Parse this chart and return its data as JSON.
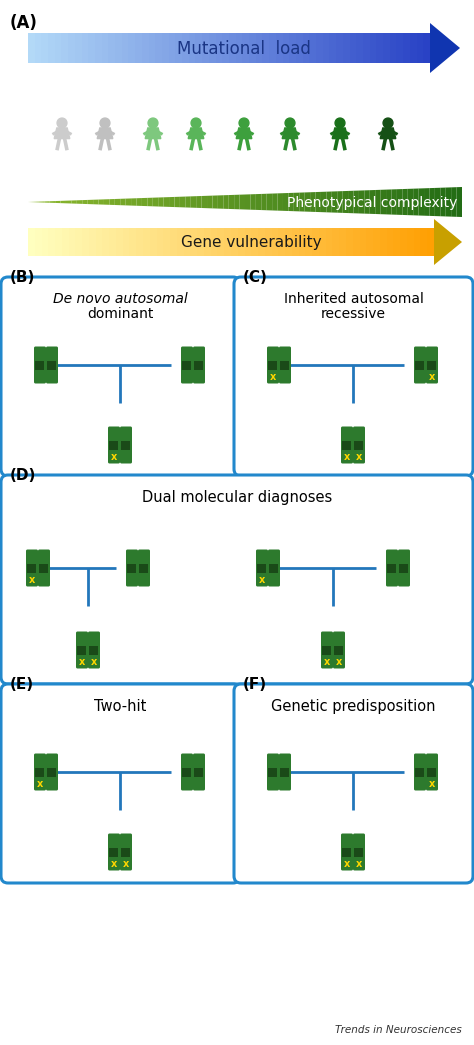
{
  "panel_A_label": "(A)",
  "mutational_load_text": "Mutational  load",
  "phenotypical_complexity_text": "Phenotypical complexity",
  "gene_vulnerability_text": "Gene vulnerability",
  "panel_B_label": "(B)",
  "panel_C_label": "(C)",
  "panel_D_label": "(D)",
  "panel_E_label": "(E)",
  "panel_F_label": "(F)",
  "panel_B_title_line1": "De novo autosomal",
  "panel_B_title_line2": "dominant",
  "panel_C_title_line1": "Inherited autosomal",
  "panel_C_title_line2": "recessive",
  "panel_D_title": "Dual molecular diagnoses",
  "panel_E_title": "Two-hit",
  "panel_F_title": "Genetic predisposition",
  "trends_text": "Trends in Neurosciences",
  "person_colors": [
    "#cccccc",
    "#c0c0c0",
    "#7ec87e",
    "#5ab55a",
    "#3da03d",
    "#2d8b2d",
    "#1a701a",
    "#155015"
  ],
  "chr_green": "#2d7a2d",
  "yellow_x": "#ffd700",
  "blue_line": "#2277bb",
  "box_border": "#2288cc"
}
